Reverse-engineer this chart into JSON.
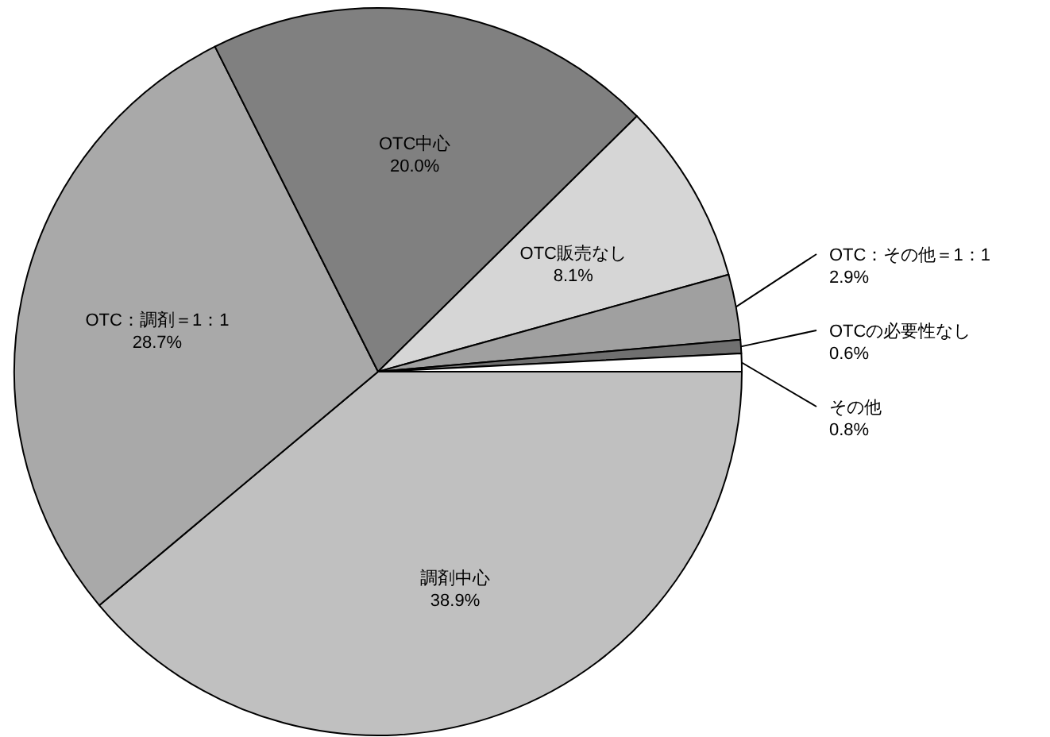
{
  "chart_data": {
    "type": "pie",
    "categories": [
      "調剤中心",
      "OTC：調剤＝1：1",
      "OTC中心",
      "OTC販売なし",
      "OTC：その他＝1：1",
      "OTCの必要性なし",
      "その他"
    ],
    "values": [
      38.9,
      28.7,
      20.0,
      8.1,
      2.9,
      0.6,
      0.8
    ],
    "value_labels": [
      "38.9%",
      "28.7%",
      "20.0%",
      "8.1%",
      "2.9%",
      "0.6%",
      "0.8%"
    ],
    "colors": [
      "#c0c0c0",
      "#a9a9a9",
      "#808080",
      "#d6d6d6",
      "#a0a0a0",
      "#707070",
      "#ffffff"
    ],
    "legend": false
  }
}
